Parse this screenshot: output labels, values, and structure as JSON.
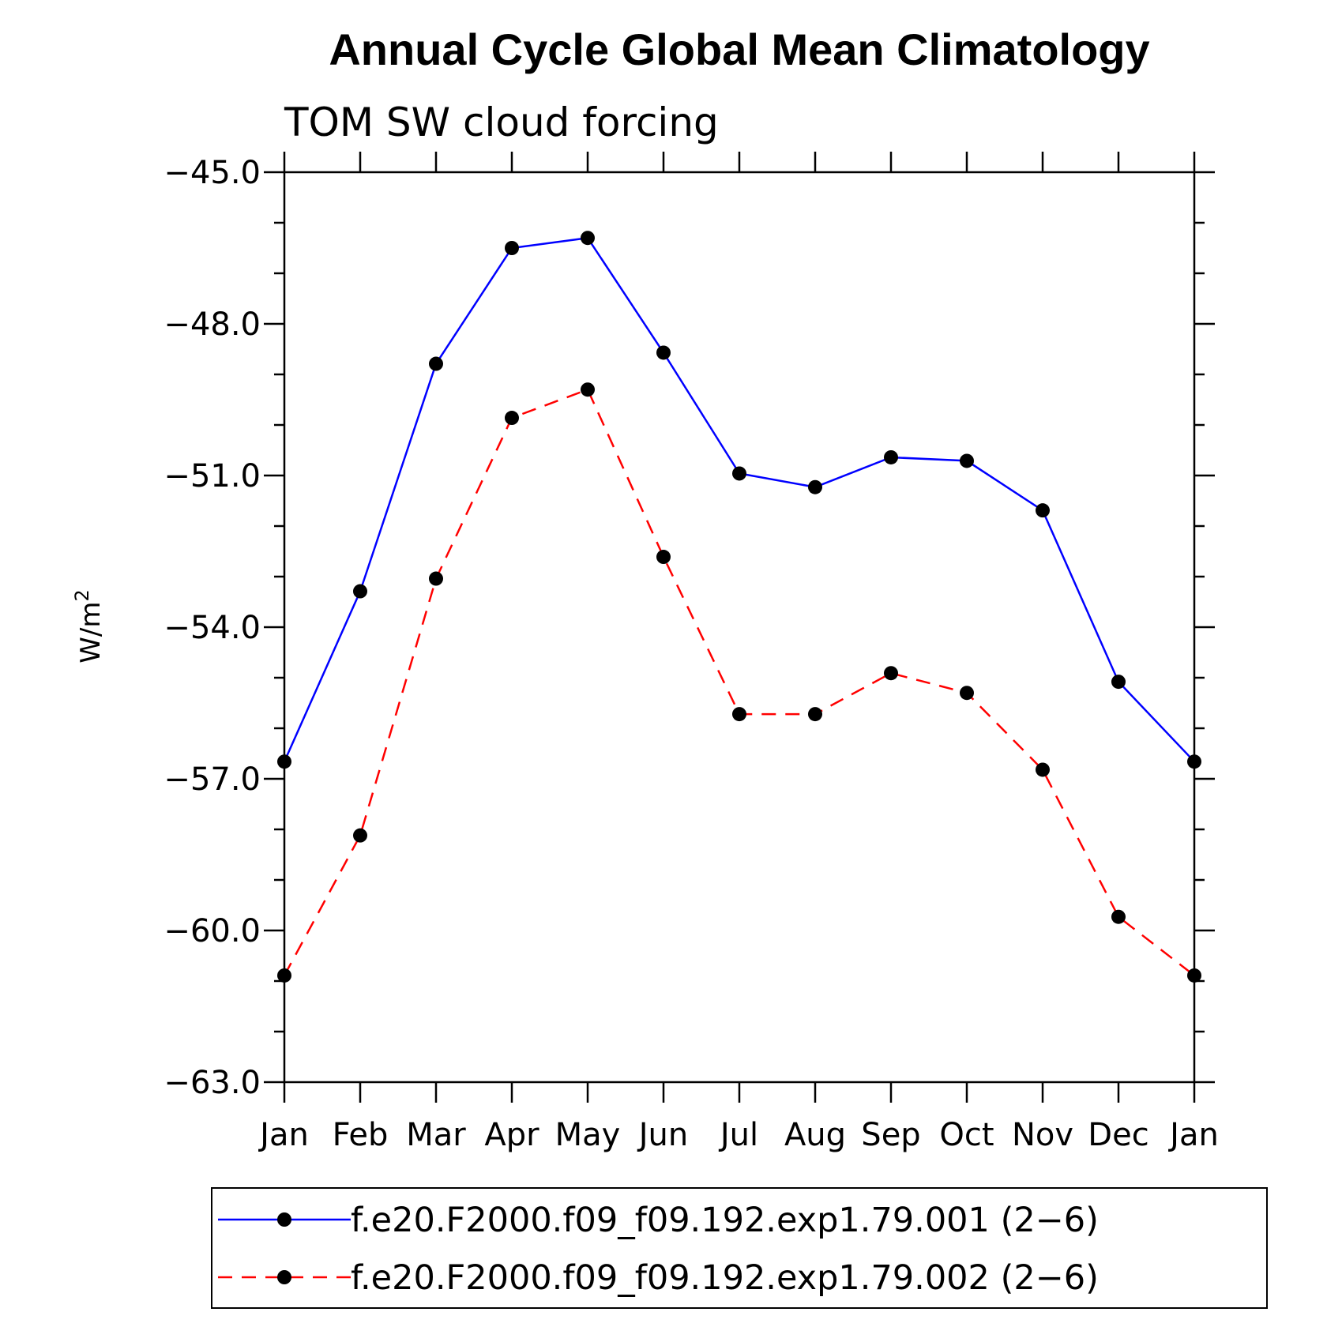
{
  "chart_data": {
    "type": "line",
    "title": "Annual Cycle Global Mean Climatology",
    "subtitle": "TOM SW cloud forcing",
    "ylabel": "W/m",
    "ylabel_superscript": "2",
    "xlabel": "",
    "categories": [
      "Jan",
      "Feb",
      "Mar",
      "Apr",
      "May",
      "Jun",
      "Jul",
      "Aug",
      "Sep",
      "Oct",
      "Nov",
      "Dec",
      "Jan"
    ],
    "ylim": [
      -63.0,
      -45.0
    ],
    "yticks": [
      "-45.0",
      "-48.0",
      "-51.0",
      "-54.0",
      "-57.0",
      "-60.0",
      "-63.0"
    ],
    "legend_position": "bottom",
    "series": [
      {
        "name": "f.e20.F2000.f09_f09.192.exp1.79.001 (2-6)",
        "color": "#0000ff",
        "style": "solid",
        "marker": "filled-circle",
        "values": [
          -56.66,
          -53.29,
          -48.79,
          -46.5,
          -46.3,
          -48.57,
          -50.96,
          -51.23,
          -50.64,
          -50.71,
          -51.69,
          -55.08,
          -56.66
        ]
      },
      {
        "name": "f.e20.F2000.f09_f09.192.exp1.79.002 (2-6)",
        "color": "#ff0000",
        "style": "dashed",
        "marker": "filled-circle",
        "values": [
          -60.89,
          -58.12,
          -53.04,
          -49.86,
          -49.3,
          -52.61,
          -55.72,
          -55.72,
          -54.91,
          -55.3,
          -56.82,
          -59.73,
          -60.89
        ]
      }
    ]
  }
}
